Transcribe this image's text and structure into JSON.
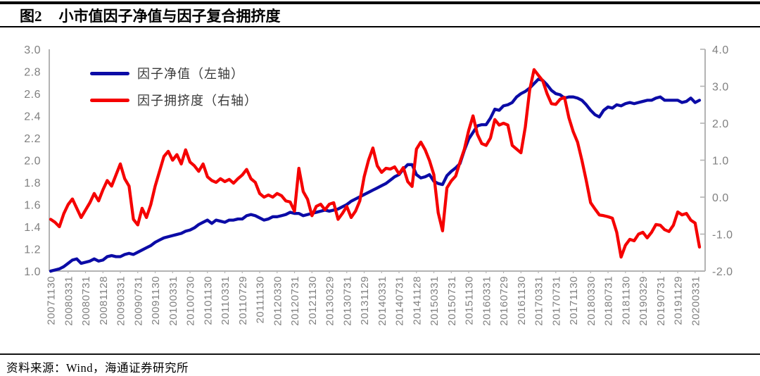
{
  "header": {
    "figure_label": "图2",
    "title": "小市值因子净值与因子复合拥挤度"
  },
  "legend": [
    {
      "label": "因子净值（左轴）",
      "color": "#0b0ba6"
    },
    {
      "label": "因子拥挤度（右轴）",
      "color": "#f50000"
    }
  ],
  "footer": {
    "source": "资料来源：Wind，海通证券研究所"
  },
  "colors": {
    "net_value_line": "#0b0ba6",
    "crowding_line": "#f50000",
    "axis_line": "#b3b3b3",
    "tick_text": "#808080",
    "title_text": "#000000"
  },
  "chart_data": {
    "type": "line",
    "frequency": "monthly",
    "x_start": "2007-11",
    "x_end": "2020-04",
    "x_tick_labels": [
      "20071130",
      "20080331",
      "20080731",
      "20081128",
      "20090331",
      "20090731",
      "20091130",
      "20100331",
      "20100730",
      "20101130",
      "20110331",
      "20110729",
      "20111130",
      "20120330",
      "20120731",
      "20121130",
      "20130329",
      "20130731",
      "20131129",
      "20140331",
      "20140731",
      "20141128",
      "20150331",
      "20150731",
      "20151130",
      "20160331",
      "20160729",
      "20161130",
      "20170331",
      "20170731",
      "20171130",
      "20180330",
      "20180731",
      "20181130",
      "20190329",
      "20190731",
      "20191129",
      "20200331"
    ],
    "x_tick_every_n_points": 4,
    "left_axis": {
      "min": 1.0,
      "max": 3.0,
      "step": 0.2,
      "ticks": [
        "3.0",
        "2.8",
        "2.6",
        "2.4",
        "2.2",
        "2.0",
        "1.8",
        "1.6",
        "1.4",
        "1.2",
        "1.0"
      ]
    },
    "right_axis": {
      "min": -2.0,
      "max": 4.0,
      "step": 1.0,
      "ticks": [
        "4.0",
        "3.0",
        "2.0",
        "1.0",
        "0.0",
        "-1.0",
        "-2.0"
      ]
    },
    "grid": false,
    "legend_position": "top-left-inside",
    "series": [
      {
        "name": "因子净值（左轴）",
        "axis": "left",
        "color": "#0b0ba6",
        "values": [
          1.0,
          1.01,
          1.02,
          1.04,
          1.07,
          1.1,
          1.11,
          1.07,
          1.08,
          1.09,
          1.11,
          1.09,
          1.1,
          1.13,
          1.14,
          1.13,
          1.13,
          1.15,
          1.16,
          1.15,
          1.17,
          1.19,
          1.21,
          1.23,
          1.26,
          1.28,
          1.3,
          1.31,
          1.32,
          1.33,
          1.34,
          1.36,
          1.37,
          1.39,
          1.42,
          1.44,
          1.46,
          1.43,
          1.46,
          1.45,
          1.44,
          1.46,
          1.46,
          1.47,
          1.47,
          1.5,
          1.51,
          1.5,
          1.48,
          1.46,
          1.47,
          1.49,
          1.49,
          1.5,
          1.51,
          1.53,
          1.52,
          1.52,
          1.5,
          1.51,
          1.52,
          1.53,
          1.54,
          1.55,
          1.54,
          1.55,
          1.56,
          1.58,
          1.6,
          1.63,
          1.65,
          1.67,
          1.69,
          1.71,
          1.73,
          1.75,
          1.77,
          1.79,
          1.82,
          1.85,
          1.87,
          1.92,
          1.96,
          1.96,
          1.87,
          1.84,
          1.85,
          1.87,
          1.81,
          1.79,
          1.78,
          1.86,
          1.9,
          1.93,
          1.97,
          2.09,
          2.19,
          2.25,
          2.31,
          2.32,
          2.32,
          2.38,
          2.46,
          2.45,
          2.49,
          2.5,
          2.52,
          2.57,
          2.6,
          2.62,
          2.65,
          2.69,
          2.73,
          2.72,
          2.68,
          2.63,
          2.6,
          2.59,
          2.56,
          2.57,
          2.57,
          2.56,
          2.54,
          2.5,
          2.45,
          2.41,
          2.39,
          2.45,
          2.48,
          2.47,
          2.5,
          2.49,
          2.51,
          2.52,
          2.51,
          2.52,
          2.53,
          2.54,
          2.54,
          2.56,
          2.57,
          2.54,
          2.54,
          2.54,
          2.54,
          2.52,
          2.53,
          2.56,
          2.52,
          2.54
        ]
      },
      {
        "name": "因子拥挤度（右轴）",
        "axis": "right",
        "color": "#f50000",
        "values": [
          -0.6,
          -0.68,
          -0.8,
          -0.45,
          -0.2,
          -0.05,
          -0.3,
          -0.55,
          -0.35,
          -0.15,
          0.1,
          -0.1,
          0.2,
          0.45,
          0.3,
          0.6,
          0.9,
          0.5,
          0.3,
          -0.6,
          -0.75,
          -0.3,
          -0.55,
          -0.2,
          0.3,
          0.7,
          1.1,
          1.24,
          1.0,
          1.15,
          0.9,
          1.28,
          0.95,
          0.85,
          0.7,
          0.9,
          0.55,
          0.45,
          0.4,
          0.5,
          0.42,
          0.48,
          0.38,
          0.5,
          0.6,
          0.75,
          0.5,
          0.4,
          0.1,
          0.0,
          0.06,
          0.0,
          0.1,
          0.04,
          -0.1,
          -0.13,
          -0.38,
          0.78,
          0.15,
          -0.06,
          -0.5,
          -0.25,
          -0.19,
          -0.34,
          -0.19,
          -0.15,
          -0.6,
          -0.44,
          -0.25,
          -0.55,
          -0.38,
          -0.1,
          0.55,
          1.0,
          1.33,
          0.85,
          0.67,
          0.78,
          0.76,
          0.82,
          0.63,
          0.8,
          0.42,
          0.29,
          1.3,
          1.49,
          1.28,
          0.99,
          0.61,
          -0.42,
          -0.91,
          0.25,
          0.44,
          0.57,
          0.95,
          1.3,
          1.8,
          2.2,
          1.7,
          1.45,
          1.4,
          1.6,
          2.1,
          1.95,
          2.0,
          1.95,
          1.4,
          1.3,
          1.2,
          1.9,
          2.9,
          3.45,
          3.3,
          3.15,
          2.8,
          2.53,
          2.51,
          2.65,
          2.7,
          2.15,
          1.77,
          1.49,
          1.0,
          0.45,
          -0.15,
          -0.32,
          -0.48,
          -0.5,
          -0.53,
          -0.57,
          -0.95,
          -1.62,
          -1.3,
          -1.14,
          -1.18,
          -1.0,
          -0.95,
          -1.1,
          -0.95,
          -0.74,
          -0.76,
          -0.88,
          -0.93,
          -0.76,
          -0.4,
          -0.48,
          -0.44,
          -0.62,
          -0.7,
          -1.35
        ]
      }
    ]
  }
}
